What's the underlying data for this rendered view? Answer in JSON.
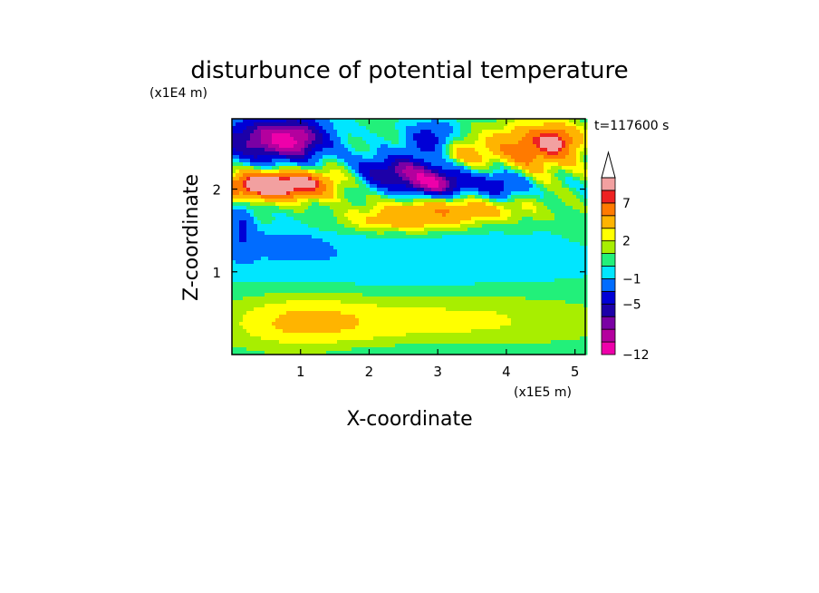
{
  "chart_data": {
    "type": "heatmap",
    "title": "disturbunce of potential temperature",
    "y_unit_label": "(x1E4 m)",
    "x_unit_label": "(x1E5 m)",
    "xlabel": "X-coordinate",
    "ylabel": "Z-coordinate",
    "time_label": "t=117600 s",
    "xlim": [
      0,
      5.15
    ],
    "ylim": [
      0,
      2.85
    ],
    "x_ticks": [
      1,
      2,
      3,
      4,
      5
    ],
    "x_tick_labels": [
      "1",
      "2",
      "3",
      "4",
      "5"
    ],
    "y_ticks": [
      1,
      2
    ],
    "y_tick_labels": [
      "1",
      "2"
    ],
    "colorbar": {
      "levels": [
        -12,
        -10,
        -8,
        -6.5,
        -5,
        -3,
        -1,
        0,
        1,
        2,
        3,
        5,
        7,
        8,
        9
      ],
      "tick_values": [
        -12,
        -5,
        -1,
        2,
        7
      ],
      "tick_labels": [
        "−12",
        "−5",
        "−1",
        "2",
        "7"
      ],
      "colors": [
        "#ee00aa",
        "#b4009e",
        "#7a00a4",
        "#1c00a8",
        "#0000d6",
        "#006cff",
        "#00e6ff",
        "#22f07a",
        "#a8ee00",
        "#ffff00",
        "#ffb400",
        "#ff7a00",
        "#ee2222",
        "#f2a0a0"
      ],
      "extend_max_color": "#ffffff"
    },
    "background_value": 0.5,
    "features": [
      {
        "x": 0.5,
        "z": 2.6,
        "sx": 0.55,
        "sz": 0.2,
        "v": -8
      },
      {
        "x": 0.95,
        "z": 2.6,
        "sx": 0.3,
        "sz": 0.18,
        "v": -5
      },
      {
        "x": 0.35,
        "z": 2.05,
        "sx": 0.4,
        "sz": 0.12,
        "v": 8
      },
      {
        "x": 0.9,
        "z": 2.05,
        "sx": 0.4,
        "sz": 0.12,
        "v": 6
      },
      {
        "x": 1.5,
        "z": 2.15,
        "sx": 0.4,
        "sz": 0.15,
        "v": 3
      },
      {
        "x": 2.5,
        "z": 2.2,
        "sx": 0.6,
        "sz": 0.15,
        "v": -8
      },
      {
        "x": 3.0,
        "z": 2.05,
        "sx": 0.3,
        "sz": 0.1,
        "v": -7
      },
      {
        "x": 2.9,
        "z": 2.6,
        "sx": 0.25,
        "sz": 0.15,
        "v": -5
      },
      {
        "x": 3.9,
        "z": 2.05,
        "sx": 0.25,
        "sz": 0.12,
        "v": -5
      },
      {
        "x": 3.3,
        "z": 2.4,
        "sx": 0.3,
        "sz": 0.15,
        "v": 4
      },
      {
        "x": 4.4,
        "z": 2.5,
        "sx": 0.45,
        "sz": 0.2,
        "v": 6
      },
      {
        "x": 4.75,
        "z": 2.6,
        "sx": 0.2,
        "sz": 0.12,
        "v": 4
      },
      {
        "x": 3.2,
        "z": 1.75,
        "sx": 0.8,
        "sz": 0.12,
        "v": 4
      },
      {
        "x": 2.4,
        "z": 1.6,
        "sx": 0.6,
        "sz": 0.1,
        "v": 3
      },
      {
        "x": 2.4,
        "z": 1.1,
        "sx": 2.2,
        "sz": 0.35,
        "v": -1.5
      },
      {
        "x": 0.7,
        "z": 1.35,
        "sx": 0.5,
        "sz": 0.15,
        "v": -1.2
      },
      {
        "x": 1.0,
        "z": 0.4,
        "sx": 0.8,
        "sz": 0.25,
        "v": 2.5
      },
      {
        "x": 3.2,
        "z": 0.45,
        "sx": 1.5,
        "sz": 0.25,
        "v": 2
      },
      {
        "x": 2.5,
        "z": 0.05,
        "sx": 1.5,
        "sz": 0.08,
        "v": -0.6
      },
      {
        "x": 0.15,
        "z": 1.55,
        "sx": 0.12,
        "sz": 0.25,
        "v": -3
      }
    ]
  }
}
